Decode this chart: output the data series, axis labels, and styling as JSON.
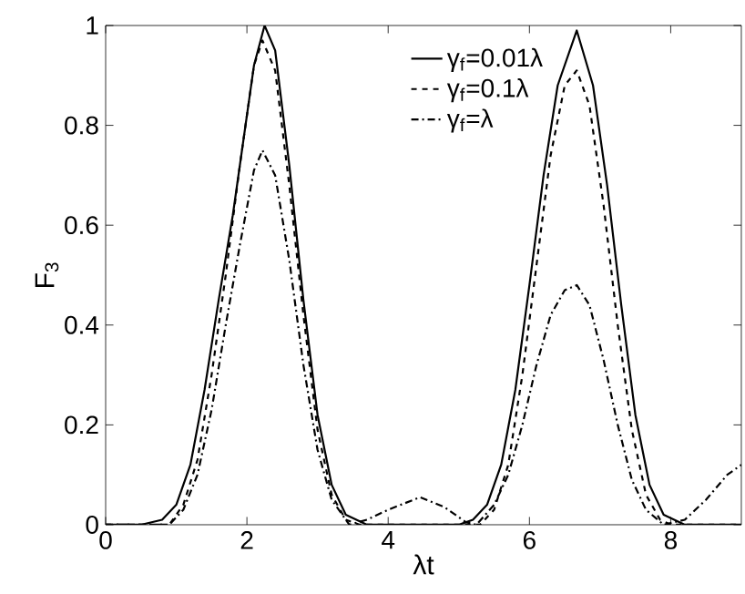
{
  "chart_data": {
    "type": "line",
    "xlabel": "λt",
    "ylabel": "F$_{3}$",
    "xlim": [
      0,
      9
    ],
    "ylim": [
      0,
      1
    ],
    "xticks": [
      0,
      2,
      4,
      6,
      8
    ],
    "yticks": [
      0,
      {
        "value": 0.2,
        "label": "0.2"
      },
      {
        "value": 0.4,
        "label": "0.4"
      },
      {
        "value": 0.6,
        "label": "0.6"
      },
      {
        "value": 0.8,
        "label": "0.8"
      },
      1
    ],
    "grid": false,
    "legend": "top",
    "marker": "none",
    "series": [
      {
        "name": "γ$_{f}$=0.01λ",
        "color": "#000000",
        "line_style": "solid",
        "x": [
          0,
          0.5,
          0.8,
          1.0,
          1.2,
          1.4,
          1.6,
          1.8,
          2.0,
          2.1,
          2.25,
          2.4,
          2.6,
          2.8,
          3.0,
          3.2,
          3.4,
          3.7,
          4.0,
          4.5,
          5.0,
          5.2,
          5.4,
          5.6,
          5.8,
          6.0,
          6.2,
          6.4,
          6.67,
          6.9,
          7.1,
          7.3,
          7.5,
          7.7,
          7.9,
          8.2,
          9.0
        ],
        "values": [
          0,
          0,
          0.01,
          0.04,
          0.12,
          0.27,
          0.45,
          0.62,
          0.82,
          0.92,
          1.0,
          0.95,
          0.72,
          0.45,
          0.22,
          0.08,
          0.02,
          0,
          0,
          0,
          0,
          0.01,
          0.04,
          0.12,
          0.27,
          0.48,
          0.7,
          0.88,
          0.99,
          0.88,
          0.68,
          0.44,
          0.22,
          0.08,
          0.02,
          0,
          0
        ]
      },
      {
        "name": "γ$_{f}$=0.1λ",
        "color": "#000000",
        "line_style": "dashed",
        "x": [
          0,
          0.9,
          1.1,
          1.3,
          1.5,
          1.7,
          1.9,
          2.1,
          2.22,
          2.4,
          2.6,
          2.8,
          3.0,
          3.2,
          3.4,
          3.6,
          4.5,
          5.3,
          5.5,
          5.7,
          5.9,
          6.1,
          6.3,
          6.5,
          6.67,
          6.85,
          7.05,
          7.25,
          7.45,
          7.65,
          7.85,
          8.0,
          9.0
        ],
        "values": [
          0,
          0,
          0.04,
          0.13,
          0.3,
          0.5,
          0.72,
          0.92,
          0.97,
          0.91,
          0.68,
          0.42,
          0.19,
          0.06,
          0.01,
          0,
          0,
          0,
          0.03,
          0.12,
          0.3,
          0.52,
          0.74,
          0.88,
          0.91,
          0.84,
          0.64,
          0.4,
          0.19,
          0.06,
          0.01,
          0,
          0
        ]
      },
      {
        "name": "γ$_{f}$=λ",
        "color": "#000000",
        "line_style": "dashdot",
        "x": [
          0,
          0.9,
          1.1,
          1.3,
          1.5,
          1.7,
          1.9,
          2.1,
          2.22,
          2.4,
          2.6,
          2.8,
          3.0,
          3.2,
          3.45,
          3.7,
          4.0,
          4.45,
          4.8,
          5.1,
          5.25,
          5.5,
          5.7,
          5.9,
          6.1,
          6.3,
          6.5,
          6.67,
          6.85,
          7.05,
          7.25,
          7.45,
          7.65,
          7.9,
          8.2,
          8.5,
          8.8,
          9.0
        ],
        "values": [
          0,
          0,
          0.03,
          0.1,
          0.23,
          0.4,
          0.56,
          0.71,
          0.75,
          0.7,
          0.53,
          0.32,
          0.15,
          0.05,
          0,
          0.01,
          0.03,
          0.055,
          0.035,
          0.005,
          0,
          0.04,
          0.1,
          0.2,
          0.32,
          0.42,
          0.47,
          0.48,
          0.44,
          0.33,
          0.2,
          0.09,
          0.03,
          0,
          0.01,
          0.05,
          0.1,
          0.12
        ]
      }
    ]
  }
}
